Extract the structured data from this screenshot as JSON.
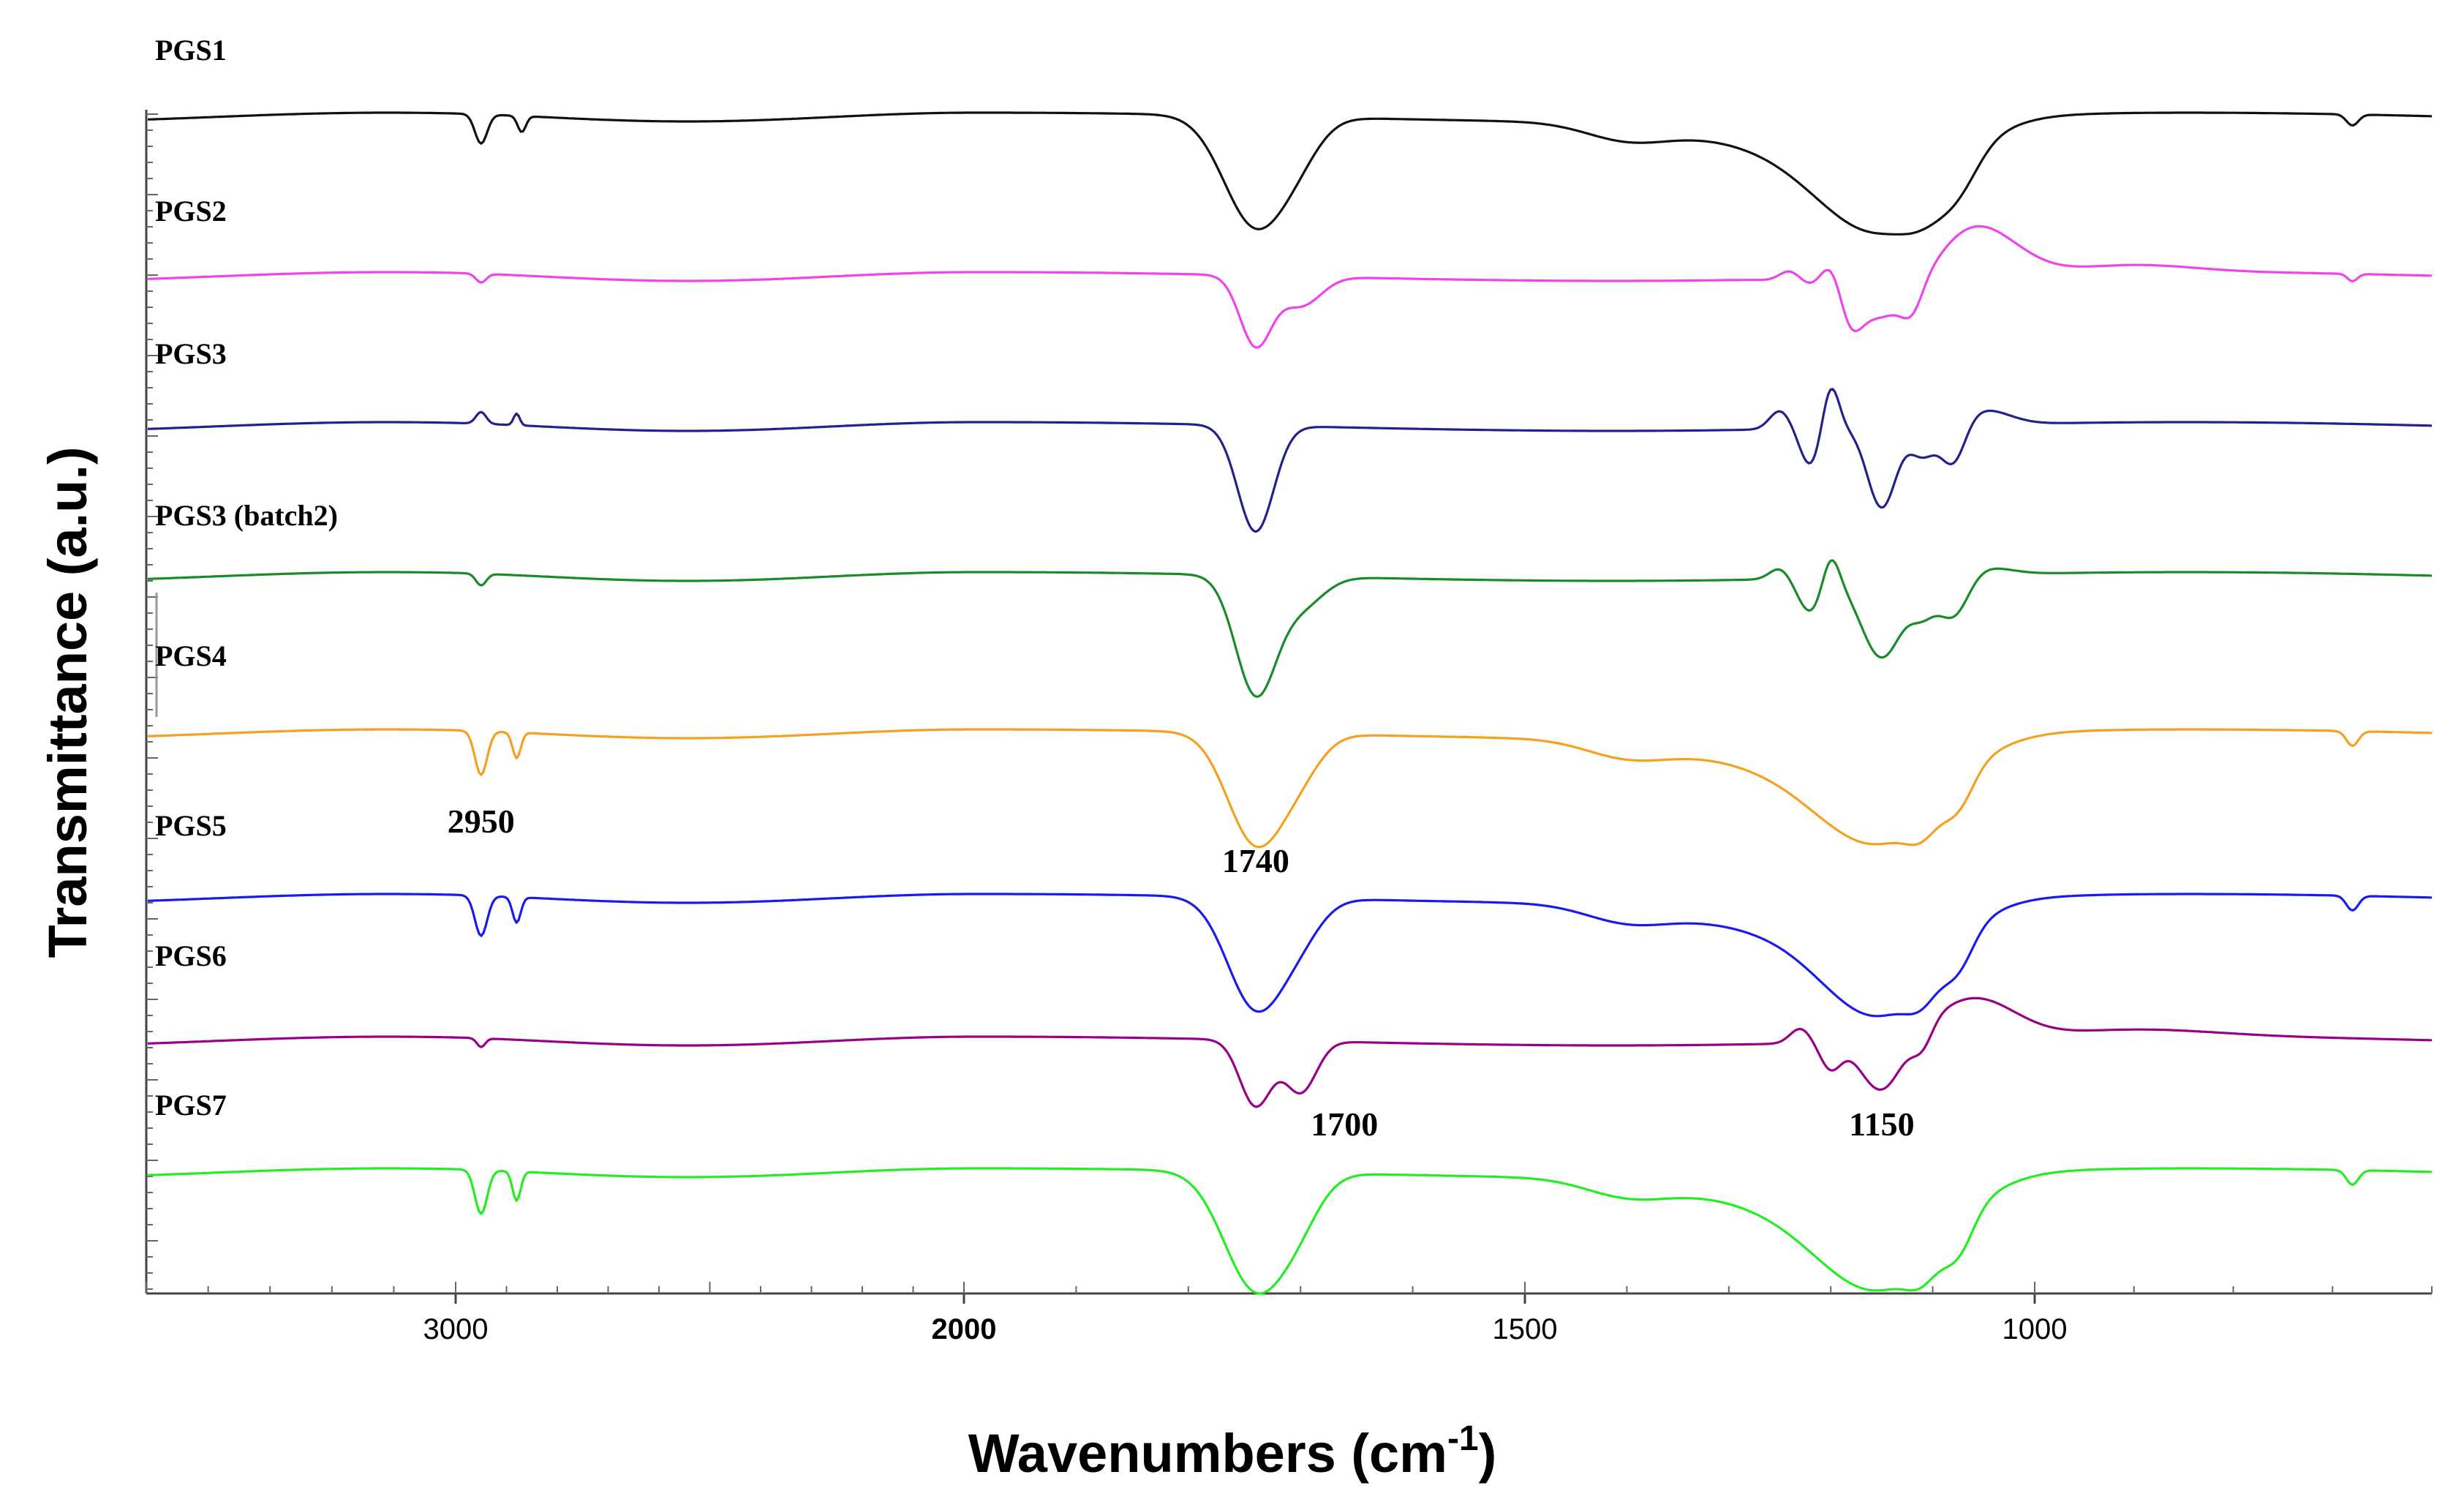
{
  "chart_data": {
    "type": "line",
    "title": "",
    "xlabel": "Wavenumbers (cm",
    "xlabel_superscript": "-1",
    "xlabel_close": ")",
    "ylabel": "Transmittance (a.u.)",
    "x_reversed": true,
    "x_ticks": [
      {
        "value": 3000,
        "label": "3000"
      },
      {
        "value": 2000,
        "label": "2000"
      },
      {
        "value": 1500,
        "label": "1500"
      },
      {
        "value": 1000,
        "label": "1000"
      }
    ],
    "series": [
      {
        "name": "PGS1",
        "color": "#111111"
      },
      {
        "name": "PGS2",
        "color": "#ee44ee"
      },
      {
        "name": "PGS3",
        "color": "#22228a"
      },
      {
        "name": "PGS3 (batch2)",
        "color": "#1a8a2a"
      },
      {
        "name": "PGS4",
        "color": "#f5a020"
      },
      {
        "name": "PGS5",
        "color": "#1a1aee"
      },
      {
        "name": "PGS6",
        "color": "#990088"
      },
      {
        "name": "PGS7",
        "color": "#22ee22"
      }
    ],
    "annotations": [
      {
        "text": "2950",
        "x": 2950
      },
      {
        "text": "1740",
        "x": 1740
      },
      {
        "text": "1700",
        "x": 1700
      },
      {
        "text": "1150",
        "x": 1150
      }
    ]
  }
}
